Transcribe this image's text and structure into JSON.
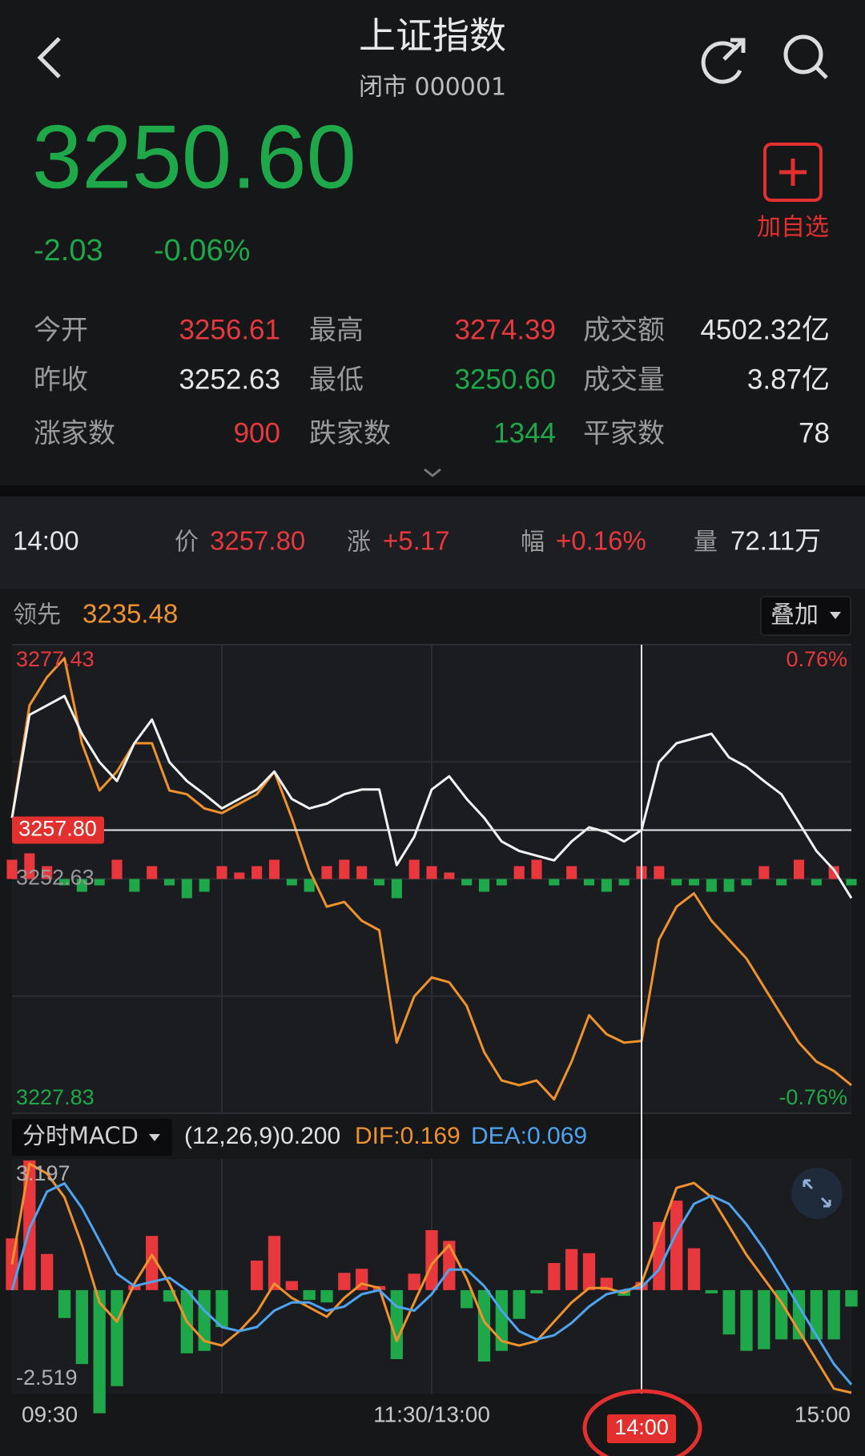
{
  "header": {
    "title": "上证指数",
    "subtitle": "闭市 000001",
    "price": "3250.60",
    "change": "-2.03",
    "change_pct": "-0.06%",
    "watch_label": "加自选"
  },
  "stats": [
    {
      "label": "今开",
      "value": "3256.61",
      "color": "#e8383d"
    },
    {
      "label": "最高",
      "value": "3274.39",
      "color": "#e8383d"
    },
    {
      "label": "成交额",
      "value": "4502.32亿",
      "color": "#e6e6e6"
    },
    {
      "label": "昨收",
      "value": "3252.63",
      "color": "#e6e6e6"
    },
    {
      "label": "最低",
      "value": "3250.60",
      "color": "#1fa84a"
    },
    {
      "label": "成交量",
      "value": "3.87亿",
      "color": "#e6e6e6"
    },
    {
      "label": "涨家数",
      "value": "900",
      "color": "#e8383d"
    },
    {
      "label": "跌家数",
      "value": "1344",
      "color": "#1fa84a"
    },
    {
      "label": "平家数",
      "value": "78",
      "color": "#e6e6e6"
    }
  ],
  "info": {
    "price_label": "价",
    "change_label": "涨",
    "change": "+5.17",
    "pct_label": "幅",
    "pct": "+0.16%",
    "volume_label": "量",
    "volume": "72.11万"
  },
  "lead": {
    "label": "领先",
    "value": "3235.48"
  },
  "overlay_label": "叠加",
  "chart": {
    "x": [
      0,
      5,
      10,
      15,
      20,
      25,
      30,
      35,
      40,
      45,
      50,
      55,
      60,
      65,
      70,
      75,
      80,
      85,
      90,
      95,
      100,
      105,
      110,
      115,
      120,
      125,
      130,
      135,
      140,
      145,
      150,
      155,
      160,
      165,
      170,
      175,
      180,
      185,
      190,
      195,
      200,
      205,
      210,
      215,
      220,
      225,
      230,
      235,
      240
    ],
    "xlim": [
      0,
      240
    ],
    "xticks": [
      {
        "value": 0,
        "label": "09:30"
      },
      {
        "value": 120,
        "label": "11:30/13:00"
      },
      {
        "value": 240,
        "label": "15:00"
      }
    ],
    "grid_x": [
      60,
      120,
      180
    ],
    "crosshair": {
      "time": "14:00",
      "x": 180,
      "price": {
        "value": 3257.8,
        "label": "3257.80"
      }
    },
    "main": {
      "ylim": [
        3227.83,
        3277.43
      ],
      "yticks": [
        3277.43,
        3252.63,
        3227.83
      ],
      "tick_colors": [
        "#e8383d",
        "#9a9a9a",
        "#1fa84a"
      ],
      "y2lim": [
        -0.76,
        0.76
      ],
      "y2ticks": [
        {
          "value": 0.76,
          "label": "0.76%"
        },
        {
          "value": -0.76,
          "label": "-0.76%"
        }
      ],
      "y2tick_colors": [
        "#e8383d",
        "#1fa84a"
      ],
      "grid_y": [
        3265.03,
        3240.23
      ],
      "series": [
        {
          "color": "#f2f2f2",
          "values": [
            3259.08,
            3270.0,
            3271.0,
            3272.0,
            3268.0,
            3265.0,
            3263.0,
            3267.0,
            3269.5,
            3265.0,
            3263.0,
            3261.6,
            3260.1,
            3261.1,
            3262.1,
            3264.0,
            3261.1,
            3260.1,
            3260.6,
            3261.6,
            3262.1,
            3262.1,
            3254.1,
            3257.1,
            3262.1,
            3263.5,
            3261.1,
            3259.1,
            3256.6,
            3255.6,
            3255.1,
            3254.6,
            3256.6,
            3258.1,
            3257.6,
            3256.6,
            3257.8,
            3265.0,
            3267.0,
            3267.5,
            3268.0,
            3265.5,
            3264.5,
            3263.0,
            3261.6,
            3258.6,
            3255.6,
            3253.6,
            3250.6
          ]
        },
        {
          "color": "#f0922b",
          "values": [
            3259.1,
            3271.0,
            3274.0,
            3276.0,
            3267.0,
            3262.0,
            3264.0,
            3267.0,
            3267.0,
            3262.0,
            3261.6,
            3260.1,
            3259.6,
            3260.6,
            3261.6,
            3264.0,
            3259.1,
            3253.6,
            3249.7,
            3250.2,
            3248.2,
            3247.2,
            3235.3,
            3240.2,
            3242.2,
            3241.7,
            3239.2,
            3234.3,
            3231.3,
            3230.8,
            3231.3,
            3229.3,
            3233.3,
            3238.2,
            3236.2,
            3235.3,
            3235.48,
            3246.2,
            3249.7,
            3251.1,
            3248.2,
            3246.2,
            3244.2,
            3241.2,
            3238.2,
            3235.3,
            3233.3,
            3232.3,
            3230.8
          ]
        }
      ],
      "bars": {
        "up_color": "#e8383d",
        "down_color": "#1fa84a",
        "values": [
          3,
          4,
          2,
          -1,
          -2,
          -1,
          3,
          -2,
          2,
          -1,
          -3,
          -2,
          2,
          1,
          2,
          3,
          -1,
          -2,
          2,
          3,
          2,
          -1,
          -3,
          3,
          2,
          1,
          -1,
          -2,
          -1,
          2,
          3,
          -1,
          2,
          -1,
          -2,
          -1,
          2,
          2,
          -1,
          -1,
          -2,
          -2,
          -1,
          2,
          -1,
          3,
          -1,
          2,
          -1
        ]
      }
    },
    "macd": {
      "label": "分时MACD",
      "params": "(12,26,9)0.200",
      "dif_label": "DIF:0.169",
      "dea_label": "DEA:0.069",
      "ylim": [
        -2.519,
        3.197
      ],
      "yticks": [
        3.197,
        -2.519
      ],
      "series": [
        {
          "color": "#f0922b",
          "values": [
            0.63,
            3.08,
            2.84,
            2.26,
            1.1,
            -0.3,
            -0.77,
            0.16,
            0.86,
            0.16,
            -0.77,
            -1.24,
            -1.35,
            -1.0,
            -0.54,
            0.16,
            -0.19,
            -0.42,
            -0.65,
            -0.19,
            0.16,
            0.05,
            -1.24,
            -0.3,
            0.63,
            1.1,
            0.28,
            -0.77,
            -1.24,
            -1.35,
            -1.24,
            -0.77,
            -0.3,
            0.05,
            0.05,
            -0.07,
            0.169,
            1.33,
            2.49,
            2.61,
            2.26,
            1.56,
            0.86,
            0.28,
            -0.3,
            -1.0,
            -1.7,
            -2.4,
            -2.5
          ]
        },
        {
          "color": "#4ea4f0",
          "values": [
            0.0,
            1.5,
            2.4,
            2.6,
            2.0,
            1.2,
            0.4,
            0.1,
            0.2,
            0.3,
            0.0,
            -0.5,
            -0.9,
            -1.0,
            -0.9,
            -0.5,
            -0.3,
            -0.3,
            -0.5,
            -0.4,
            -0.1,
            0.0,
            -0.4,
            -0.5,
            -0.1,
            0.5,
            0.5,
            0.1,
            -0.5,
            -1.0,
            -1.2,
            -1.1,
            -0.8,
            -0.4,
            -0.1,
            0.0,
            0.069,
            0.5,
            1.4,
            2.1,
            2.3,
            2.1,
            1.6,
            1.0,
            0.3,
            -0.4,
            -1.1,
            -1.8,
            -2.3
          ]
        }
      ],
      "histogram": {
        "up_color": "#e8383d",
        "down_color": "#1fa84a",
        "values": [
          1.26,
          3.16,
          0.88,
          -0.68,
          -1.8,
          -3.0,
          -2.34,
          0.12,
          1.32,
          -0.28,
          -1.54,
          -1.48,
          -0.9,
          0,
          0.72,
          1.32,
          0.22,
          -0.24,
          -0.3,
          0.42,
          0.52,
          0.1,
          -1.68,
          0.4,
          1.46,
          1.2,
          -0.44,
          -1.74,
          -1.48,
          -0.7,
          -0.08,
          0.66,
          1.0,
          0.9,
          0.3,
          -0.14,
          0.2,
          1.66,
          2.18,
          1.02,
          -0.08,
          -1.08,
          -1.48,
          -1.44,
          -1.2,
          -1.2,
          -1.2,
          -1.2,
          -0.4
        ]
      }
    }
  }
}
